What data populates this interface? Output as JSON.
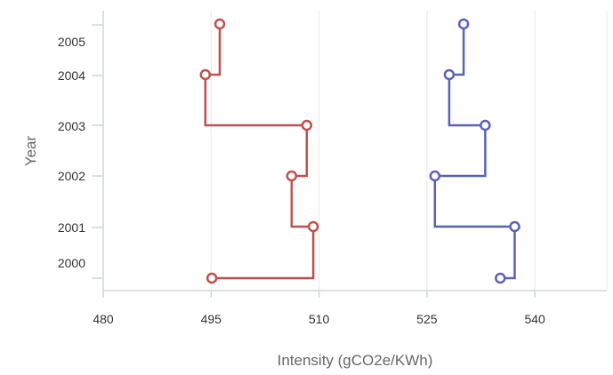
{
  "chart_data": {
    "type": "line",
    "title": "",
    "xlabel": "Intensity (gCO2e/KWh)",
    "ylabel": "Year",
    "xlim": [
      480,
      550
    ],
    "x_ticks": [
      480,
      495,
      510,
      525,
      540
    ],
    "y_ticks": [
      2000,
      2001,
      2002,
      2003,
      2004,
      2005
    ],
    "grid": "vertical",
    "legend": "none",
    "series": [
      {
        "color": "#c0504d",
        "points": [
          {
            "year": 2005,
            "x": 496.2
          },
          {
            "year": 2004,
            "x": 494.2
          },
          {
            "year": 2003,
            "x": 508.3
          },
          {
            "year": 2002,
            "x": 506.2
          },
          {
            "year": 2001,
            "x": 509.2
          },
          {
            "year": 2000,
            "x": 495.1
          }
        ]
      },
      {
        "color": "#5b63b5",
        "points": [
          {
            "year": 2005,
            "x": 530.1
          },
          {
            "year": 2004,
            "x": 528.1
          },
          {
            "year": 2003,
            "x": 533.1
          },
          {
            "year": 2002,
            "x": 526.1
          },
          {
            "year": 2001,
            "x": 537.2
          },
          {
            "year": 2000,
            "x": 535.2
          }
        ]
      }
    ]
  }
}
